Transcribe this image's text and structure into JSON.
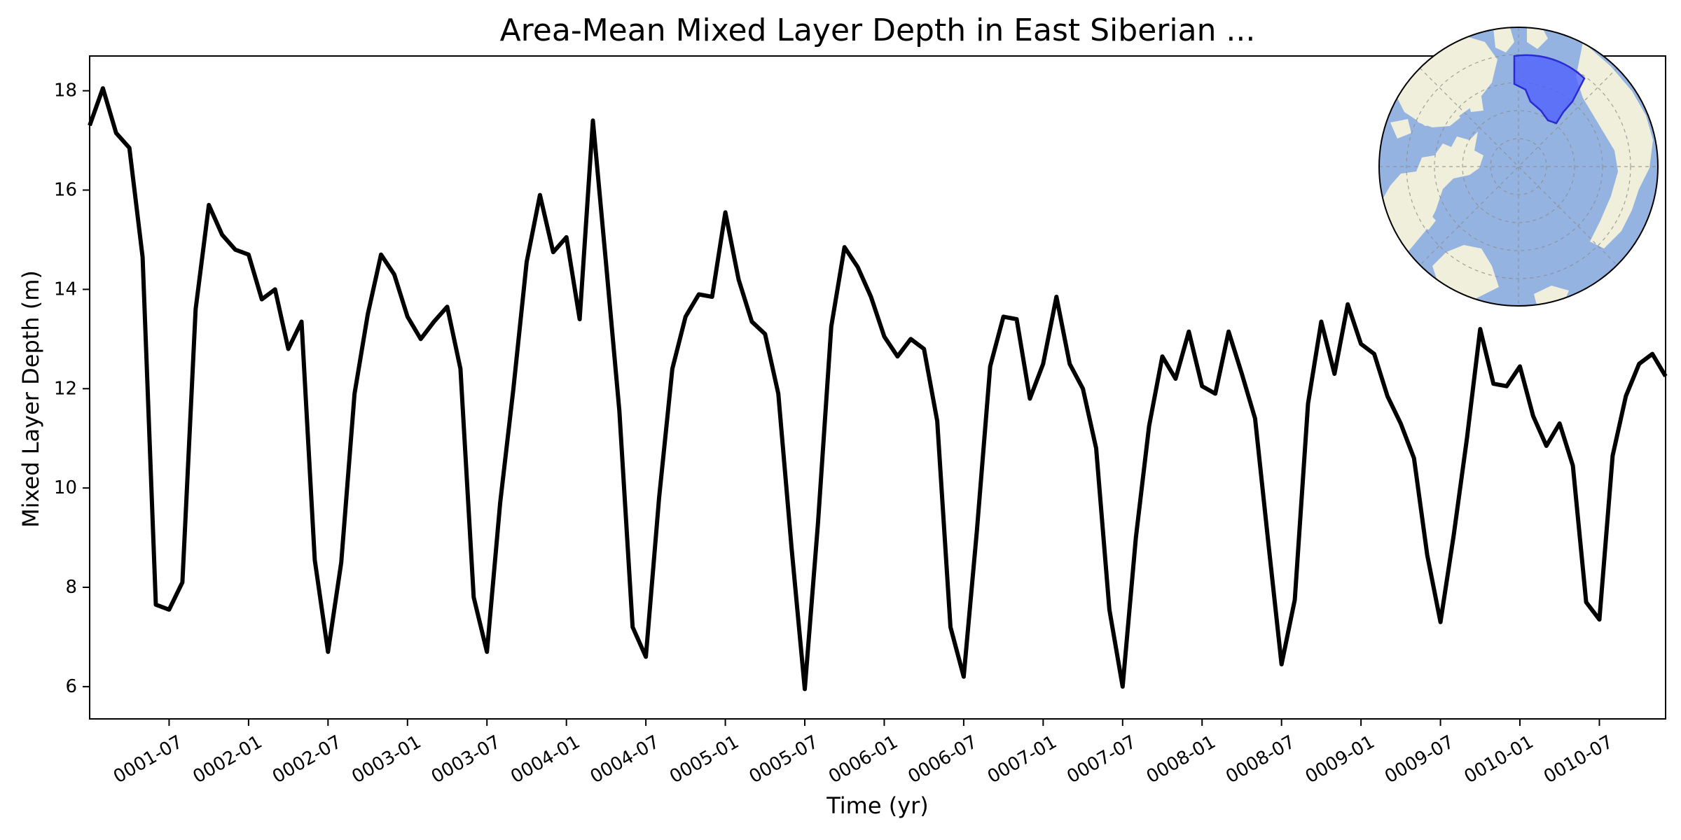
{
  "chart_data": {
    "type": "line",
    "title": "Area-Mean Mixed Layer Depth in East Siberian ...",
    "xlabel": "Time (yr)",
    "ylabel": "Mixed Layer Depth (m)",
    "x_start": "0001-01",
    "x_end": "0010-12",
    "x_frequency": "monthly",
    "xticks": [
      "0001-07",
      "0002-01",
      "0002-07",
      "0003-01",
      "0003-07",
      "0004-01",
      "0004-07",
      "0005-01",
      "0005-07",
      "0006-01",
      "0006-07",
      "0007-01",
      "0007-07",
      "0008-01",
      "0008-07",
      "0009-01",
      "0009-07",
      "0010-01",
      "0010-07"
    ],
    "yticks": [
      6,
      8,
      10,
      12,
      14,
      16,
      18
    ],
    "ylim": [
      5.35,
      18.7
    ],
    "grid": false,
    "line_color": "#000000",
    "series": [
      {
        "values": [
          17.3,
          18.05,
          17.15,
          16.85,
          14.65,
          7.65,
          7.55,
          8.1,
          13.6,
          15.7,
          15.1,
          14.8,
          14.7,
          13.8,
          14.0,
          12.8,
          13.35,
          8.55,
          6.7,
          8.5,
          11.9,
          13.5,
          14.7,
          14.3,
          13.45,
          13.0,
          13.35,
          13.65,
          12.4,
          7.8,
          6.7,
          9.7,
          12.0,
          14.55,
          15.9,
          14.75,
          15.05,
          13.4,
          17.4,
          14.5,
          11.55,
          7.2,
          6.6,
          9.8,
          12.4,
          13.45,
          13.9,
          13.85,
          15.55,
          14.2,
          13.35,
          13.1,
          11.9,
          8.8,
          5.95,
          9.3,
          13.25,
          14.85,
          14.45,
          13.85,
          13.05,
          12.65,
          13.0,
          12.8,
          11.35,
          7.2,
          6.2,
          9.15,
          12.45,
          13.45,
          13.4,
          11.8,
          12.5,
          13.85,
          12.5,
          12.0,
          10.8,
          7.55,
          6.0,
          9.0,
          11.25,
          12.65,
          12.2,
          13.15,
          12.05,
          11.9,
          13.15,
          12.3,
          11.4,
          8.9,
          6.45,
          7.75,
          11.7,
          13.35,
          12.3,
          13.7,
          12.9,
          12.7,
          11.85,
          11.3,
          10.6,
          8.65,
          7.3,
          9.05,
          11.0,
          13.2,
          12.1,
          12.05,
          12.45,
          11.45,
          10.85,
          11.3,
          10.45,
          7.7,
          7.35,
          10.65,
          11.85,
          12.5,
          12.7,
          12.25
        ]
      }
    ]
  },
  "inset_map": {
    "projection": "north-polar-stereographic",
    "ocean_color": "#94b3e0",
    "land_color": "#efefdb",
    "region_color": "#4b5cff",
    "region_edge_color": "#2b2bd6"
  }
}
